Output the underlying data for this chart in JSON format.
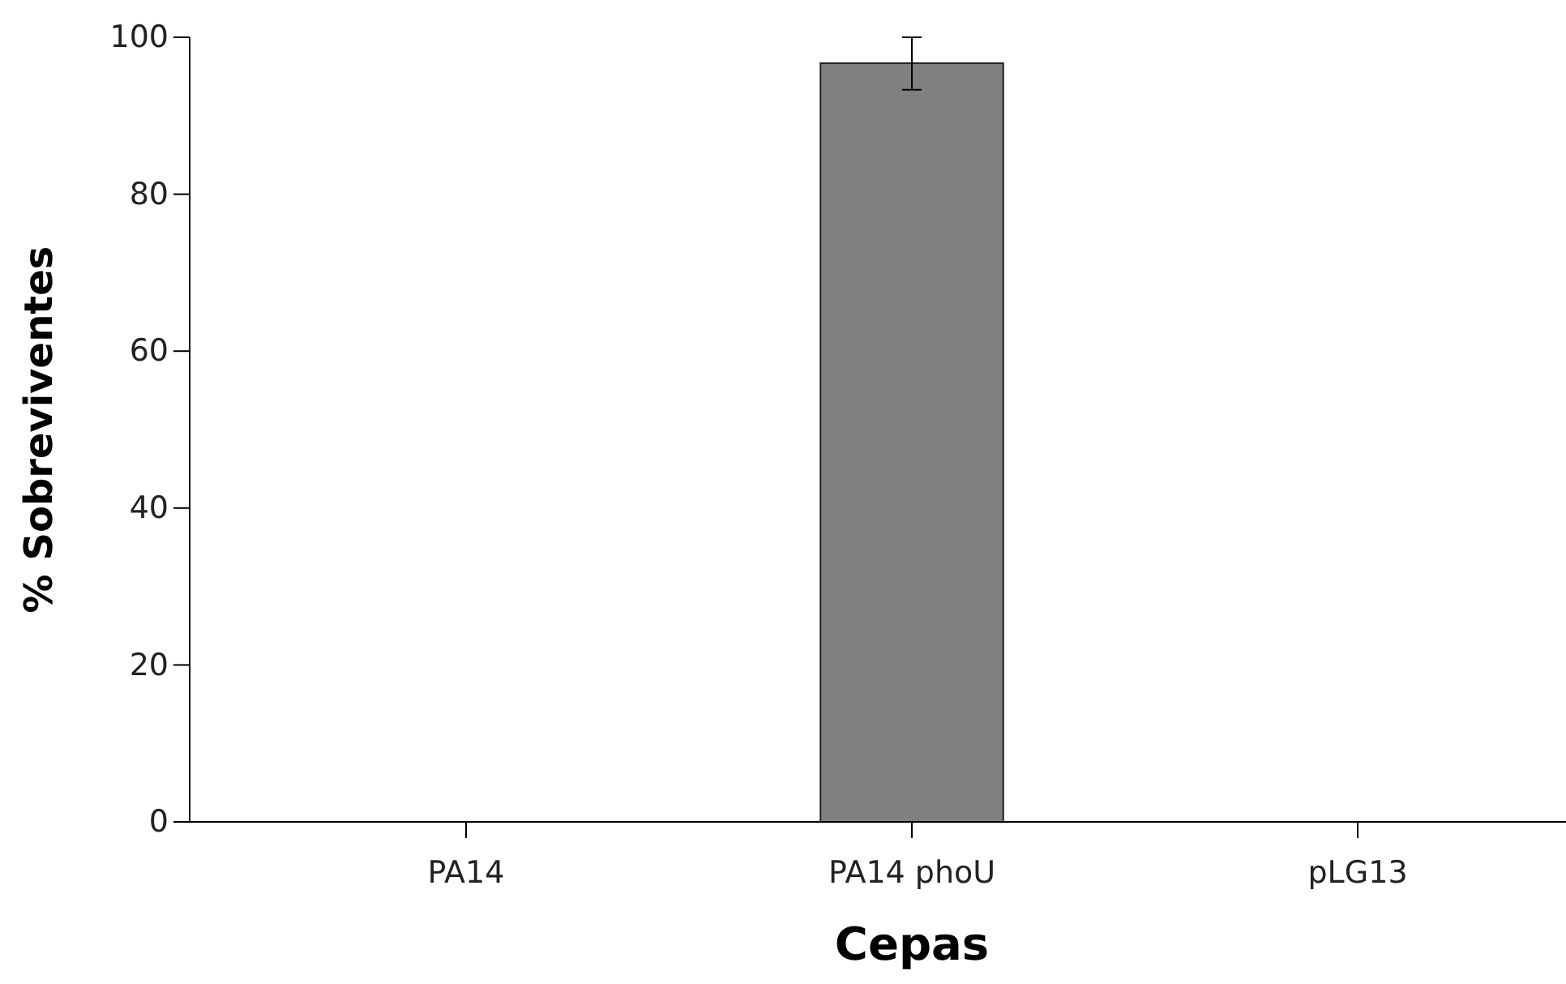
{
  "chart_data": {
    "type": "bar",
    "xlabel": "Cepas",
    "ylabel": "% Sobreviventes",
    "categories": [
      "PA14",
      "PA14 phoU",
      "pLG13"
    ],
    "values": [
      0,
      96.7,
      0
    ],
    "errors": [
      null,
      [
        93.3,
        100
      ],
      null
    ],
    "color": "#808080",
    "ylim": [
      0,
      100
    ],
    "yticks": [
      0,
      20,
      40,
      60,
      80,
      100
    ],
    "grid": false
  }
}
